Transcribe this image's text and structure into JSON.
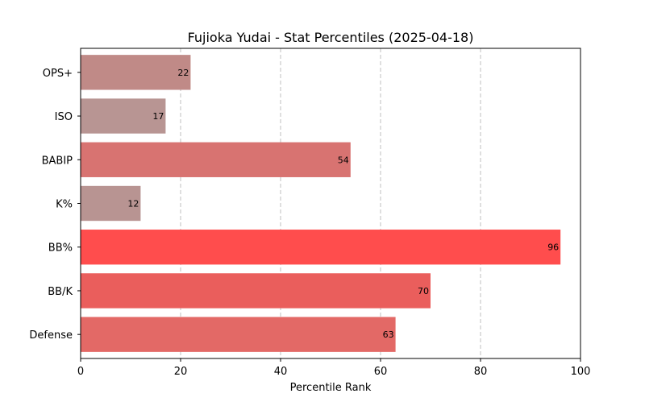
{
  "chart_data": {
    "type": "bar",
    "orientation": "horizontal",
    "title": "Fujioka Yudai - Stat Percentiles (2025-04-18)",
    "xlabel": "Percentile Rank",
    "ylabel": "",
    "xlim": [
      0,
      100
    ],
    "xticks": [
      0,
      20,
      40,
      60,
      80,
      100
    ],
    "grid": "x-axis dashed",
    "legend": "none",
    "categories": [
      "OPS+",
      "ISO",
      "BABIP",
      "K%",
      "BB%",
      "BB/K",
      "Defense"
    ],
    "values": [
      22,
      17,
      54,
      12,
      96,
      70,
      63
    ],
    "colors": [
      "#c08a87",
      "#b89593",
      "#d87371",
      "#b89492",
      "#ff4d4d",
      "#ea5e5c",
      "#e36966"
    ],
    "data_labels": true
  }
}
